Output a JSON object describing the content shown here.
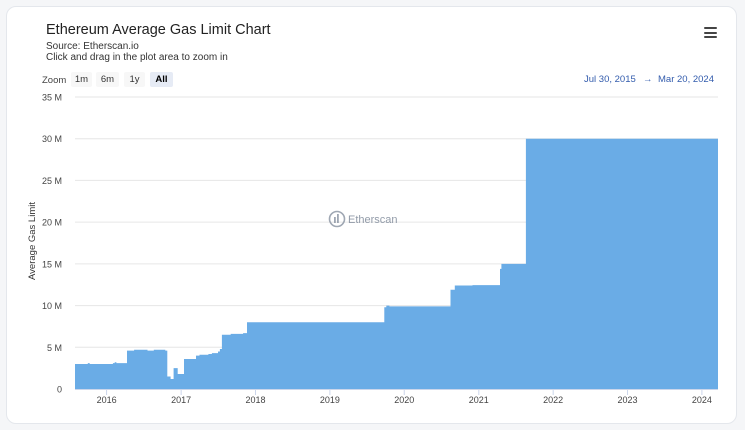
{
  "header": {
    "title": "Ethereum Average Gas Limit Chart",
    "source": "Source: Etherscan.io",
    "hint": "Click and drag in the plot area to zoom in"
  },
  "range_selector": {
    "zoom_label": "Zoom",
    "buttons": [
      "1m",
      "6m",
      "1y",
      "All"
    ],
    "active": "All",
    "from": "Jul 30, 2015",
    "arrow": "→",
    "to": "Mar 20, 2024"
  },
  "watermark": "Etherscan",
  "colors": {
    "series": "#6aace6",
    "grid": "#e6e6e6",
    "range_text": "#335cad"
  },
  "chart_data": {
    "type": "area",
    "title": "Ethereum Average Gas Limit Chart",
    "ylabel": "Average Gas Limit",
    "xlabel": "",
    "ylim": [
      0,
      35000000
    ],
    "yticks": [
      0,
      5000000,
      10000000,
      15000000,
      20000000,
      25000000,
      30000000,
      35000000
    ],
    "ytick_labels": [
      "0",
      "5 M",
      "10 M",
      "15 M",
      "20 M",
      "25 M",
      "30 M",
      "35 M"
    ],
    "xticks": [
      "2016",
      "2017",
      "2018",
      "2019",
      "2020",
      "2021",
      "2022",
      "2023",
      "2024"
    ],
    "xlim": [
      "2015-07-30",
      "2024-03-20"
    ],
    "grid": true,
    "legend": "none",
    "series": [
      {
        "x": [
          "2015-07-30",
          "2015-10-01",
          "2015-10-10",
          "2016-02-01",
          "2016-02-10",
          "2016-02-18",
          "2016-04-10",
          "2016-05-15",
          "2016-07-20",
          "2016-08-20",
          "2016-10-15",
          "2016-10-25",
          "2016-11-10",
          "2016-11-25",
          "2016-12-15",
          "2017-01-15",
          "2017-03-15",
          "2017-04-01",
          "2017-05-15",
          "2017-06-01",
          "2017-07-01",
          "2017-07-10",
          "2017-07-20",
          "2017-09-01",
          "2017-11-01",
          "2017-11-20",
          "2018-06-01",
          "2018-12-01",
          "2019-06-01",
          "2019-09-01",
          "2019-09-25",
          "2019-10-05",
          "2019-10-20",
          "2020-07-01",
          "2020-08-15",
          "2020-09-05",
          "2020-12-01",
          "2021-04-01",
          "2021-04-15",
          "2021-04-22",
          "2021-08-15",
          "2021-08-20",
          "2022-09-15",
          "2023-06-01",
          "2024-03-20"
        ],
        "y": [
          3000000,
          3100000,
          3000000,
          3100000,
          3200000,
          3100000,
          4600000,
          4700000,
          4600000,
          4700000,
          4600000,
          1500000,
          1200000,
          2500000,
          1800000,
          3600000,
          4000000,
          4100000,
          4200000,
          4300000,
          4500000,
          4800000,
          6500000,
          6600000,
          6700000,
          7990000,
          7990000,
          7990000,
          7990000,
          7990000,
          9800000,
          10000000,
          9900000,
          9900000,
          11900000,
          12400000,
          12450000,
          12450000,
          14400000,
          15000000,
          15000000,
          30000000,
          30000000,
          30000000,
          30000000
        ]
      }
    ]
  }
}
